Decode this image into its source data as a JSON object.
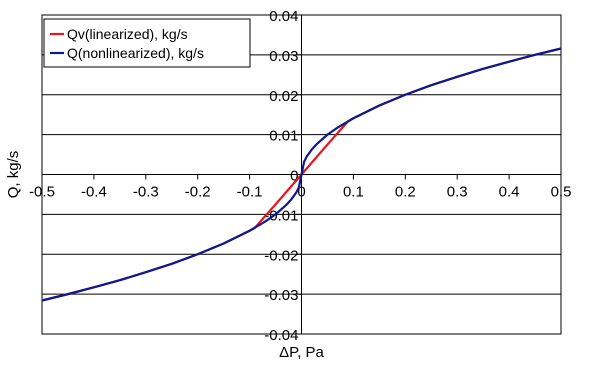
{
  "chart_data": {
    "type": "line",
    "title": "",
    "xlabel": "ΔP, Pa",
    "ylabel": "Q, kg/s",
    "xlim": [
      -0.5,
      0.5
    ],
    "ylim": [
      -0.04,
      0.04
    ],
    "x_ticks": [
      -0.5,
      -0.4,
      -0.3,
      -0.2,
      -0.1,
      0,
      0.1,
      0.2,
      0.3,
      0.4,
      0.5
    ],
    "x_tick_labels": [
      "-0.5",
      "-0.4",
      "-0.3",
      "-0.2",
      "-0.1",
      "0",
      "0.1",
      "0.2",
      "0.3",
      "0.4",
      "0.5"
    ],
    "y_ticks": [
      -0.04,
      -0.03,
      -0.02,
      -0.01,
      0,
      0.01,
      0.02,
      0.03,
      0.04
    ],
    "y_tick_labels": [
      "-0.04",
      "-0.03",
      "-0.02",
      "-0.01",
      "0",
      "0.01",
      "0.02",
      "0.03",
      "0.04"
    ],
    "grid": "horizontal",
    "legend_position": "top-left",
    "series": [
      {
        "name": "Qv(linearized), kg/s",
        "color": "#e8141e",
        "x": [
          -0.5,
          -0.45,
          -0.4,
          -0.35,
          -0.3,
          -0.25,
          -0.2,
          -0.15,
          -0.1,
          -0.09,
          -0.05,
          0,
          0.05,
          0.09,
          0.1,
          0.15,
          0.2,
          0.25,
          0.3,
          0.35,
          0.4,
          0.45,
          0.5
        ],
        "y": [
          -0.0316,
          -0.03,
          -0.0283,
          -0.0265,
          -0.0245,
          -0.0224,
          -0.02,
          -0.0173,
          -0.0141,
          -0.0134,
          -0.0075,
          0,
          0.0075,
          0.0134,
          0.0141,
          0.0173,
          0.02,
          0.0224,
          0.0245,
          0.0265,
          0.0283,
          0.03,
          0.0316
        ]
      },
      {
        "name": "Q(nonlinearized), kg/s",
        "color": "#0c1a8c",
        "x": [
          -0.5,
          -0.45,
          -0.4,
          -0.35,
          -0.3,
          -0.25,
          -0.2,
          -0.15,
          -0.1,
          -0.07,
          -0.05,
          -0.03,
          -0.02,
          -0.01,
          -0.005,
          0,
          0.005,
          0.01,
          0.02,
          0.03,
          0.05,
          0.07,
          0.1,
          0.15,
          0.2,
          0.25,
          0.3,
          0.35,
          0.4,
          0.45,
          0.5
        ],
        "y": [
          -0.0316,
          -0.03,
          -0.0283,
          -0.0265,
          -0.0245,
          -0.0224,
          -0.02,
          -0.0173,
          -0.0141,
          -0.0118,
          -0.01,
          -0.0077,
          -0.0063,
          -0.0045,
          -0.0032,
          0,
          0.0032,
          0.0045,
          0.0063,
          0.0077,
          0.01,
          0.0118,
          0.0141,
          0.0173,
          0.02,
          0.0224,
          0.0245,
          0.0265,
          0.0283,
          0.03,
          0.0316
        ]
      }
    ]
  }
}
